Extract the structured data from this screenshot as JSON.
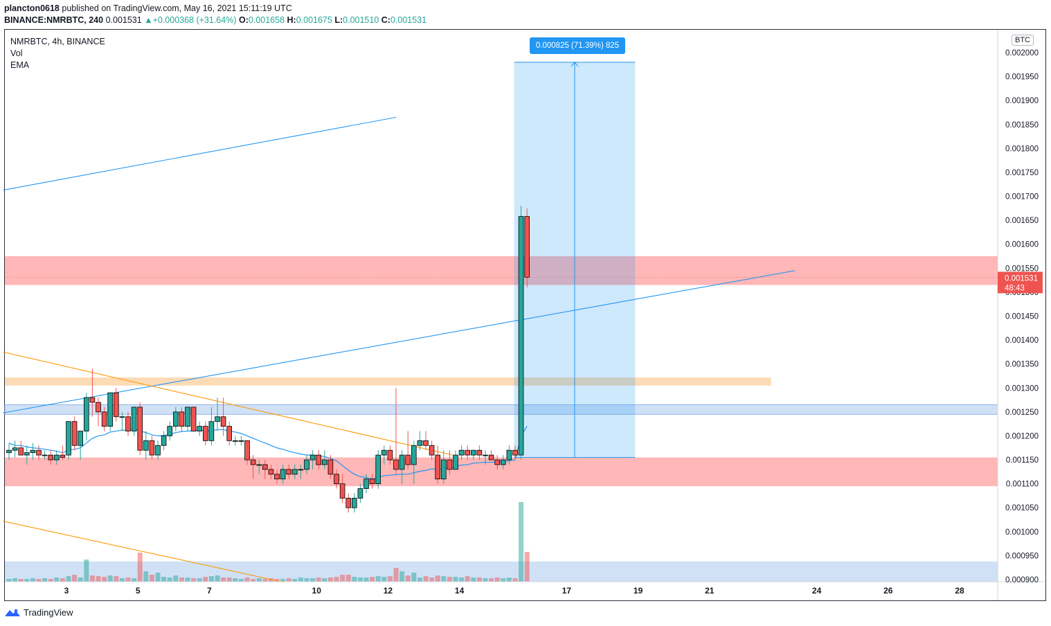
{
  "header": {
    "publisher": "plancton0618",
    "published_text": " published on TradingView.com, May 16, 2021 15:11:19 UTC",
    "symbol": "BINANCE:NMRBTC, 240",
    "last_price": "0.001531",
    "change": "+0.000368 (+31.64%)",
    "o_label": "O:",
    "o_value": "0.001658",
    "h_label": "H:",
    "h_value": "0.001675",
    "l_label": "L:",
    "l_value": "0.001510",
    "c_label": "C:",
    "c_value": "0.001531"
  },
  "legend": {
    "title": "NMRBTC, 4h, BINANCE",
    "vol": "Vol",
    "ema": "EMA"
  },
  "price_scale": {
    "currency": "BTC",
    "current_price": "0.001531",
    "countdown": "48:43"
  },
  "measure_label": "0.000825 (71.39%) 825",
  "footer": {
    "brand": "TradingView"
  },
  "colors": {
    "up": "#26a69a",
    "down": "#ef5350",
    "ema": "#2196f3",
    "trend_blue": "#2196f3",
    "trend_orange": "#ff9800",
    "zone_red": "#ffb3b3",
    "zone_blue": "#c8dcf5",
    "zone_orange": "#fcd9b3",
    "measure": "#2196f3"
  },
  "chart_data": {
    "type": "candlestick",
    "symbol": "NMRBTC",
    "interval": "4h",
    "exchange": "BINANCE",
    "ylim": [
      0.000895,
      0.002015
    ],
    "y_ticks": [
      "0.002000",
      "0.001950",
      "0.001900",
      "0.001850",
      "0.001800",
      "0.001750",
      "0.001700",
      "0.001650",
      "0.001600",
      "0.001550",
      "0.001500",
      "0.001450",
      "0.001400",
      "0.001350",
      "0.001300",
      "0.001250",
      "0.001200",
      "0.001150",
      "0.001100",
      "0.001050",
      "0.001000",
      "0.000950",
      "0.000900"
    ],
    "x_ticks": [
      {
        "label": "3",
        "bar": 10
      },
      {
        "label": "5",
        "bar": 22
      },
      {
        "label": "7",
        "bar": 34
      },
      {
        "label": "10",
        "bar": 52
      },
      {
        "label": "12",
        "bar": 64
      },
      {
        "label": "14",
        "bar": 76
      },
      {
        "label": "17",
        "bar": 94
      },
      {
        "label": "19",
        "bar": 106
      },
      {
        "label": "21",
        "bar": 118
      },
      {
        "label": "24",
        "bar": 136
      },
      {
        "label": "26",
        "bar": 148
      },
      {
        "label": "28",
        "bar": 160
      }
    ],
    "total_bars": 168,
    "ohlc": [
      [
        0.001165,
        0.001185,
        0.00115,
        0.00117
      ],
      [
        0.00117,
        0.00119,
        0.001155,
        0.001175
      ],
      [
        0.001175,
        0.00119,
        0.00116,
        0.00116
      ],
      [
        0.00116,
        0.00118,
        0.00114,
        0.001165
      ],
      [
        0.001165,
        0.001185,
        0.00115,
        0.00117
      ],
      [
        0.00117,
        0.00118,
        0.00115,
        0.00116
      ],
      [
        0.00116,
        0.00117,
        0.00115,
        0.00116
      ],
      [
        0.00116,
        0.00117,
        0.00114,
        0.00115
      ],
      [
        0.00115,
        0.00117,
        0.00114,
        0.00116
      ],
      [
        0.00116,
        0.00118,
        0.00115,
        0.001155
      ],
      [
        0.00116,
        0.00123,
        0.00115,
        0.00123
      ],
      [
        0.00123,
        0.00124,
        0.00117,
        0.00118
      ],
      [
        0.00118,
        0.00121,
        0.00115,
        0.00121
      ],
      [
        0.00121,
        0.00129,
        0.00119,
        0.00128
      ],
      [
        0.00128,
        0.00134,
        0.00124,
        0.00127
      ],
      [
        0.00127,
        0.00128,
        0.00122,
        0.00125
      ],
      [
        0.00125,
        0.00126,
        0.00121,
        0.00122
      ],
      [
        0.00122,
        0.00129,
        0.00121,
        0.00129
      ],
      [
        0.00129,
        0.0013,
        0.00123,
        0.00124
      ],
      [
        0.00124,
        0.00125,
        0.00121,
        0.00124
      ],
      [
        0.00124,
        0.00125,
        0.0012,
        0.00121
      ],
      [
        0.00121,
        0.00126,
        0.0012,
        0.00126
      ],
      [
        0.00126,
        0.00127,
        0.00116,
        0.00117
      ],
      [
        0.00117,
        0.00121,
        0.00115,
        0.00119
      ],
      [
        0.00119,
        0.0012,
        0.00115,
        0.00116
      ],
      [
        0.00116,
        0.00119,
        0.00115,
        0.00118
      ],
      [
        0.00118,
        0.00121,
        0.00117,
        0.0012
      ],
      [
        0.0012,
        0.00123,
        0.00119,
        0.00122
      ],
      [
        0.00122,
        0.00126,
        0.00121,
        0.00125
      ],
      [
        0.00125,
        0.00126,
        0.00121,
        0.00122
      ],
      [
        0.00122,
        0.00125,
        0.00121,
        0.00126
      ],
      [
        0.00126,
        0.00126,
        0.00121,
        0.00121
      ],
      [
        0.00121,
        0.00123,
        0.0012,
        0.00122
      ],
      [
        0.00122,
        0.00123,
        0.00118,
        0.00119
      ],
      [
        0.00119,
        0.00126,
        0.00118,
        0.00123
      ],
      [
        0.00123,
        0.00128,
        0.00121,
        0.00124
      ],
      [
        0.00124,
        0.00128,
        0.0012,
        0.00122
      ],
      [
        0.00122,
        0.00123,
        0.00118,
        0.00119
      ],
      [
        0.00119,
        0.0012,
        0.00118,
        0.00119
      ],
      [
        0.00119,
        0.0012,
        0.00118,
        0.00119
      ],
      [
        0.00119,
        0.00119,
        0.00114,
        0.00115
      ],
      [
        0.00115,
        0.00116,
        0.00111,
        0.00114
      ],
      [
        0.00114,
        0.00115,
        0.00112,
        0.00114
      ],
      [
        0.00114,
        0.00115,
        0.00111,
        0.00113
      ],
      [
        0.00113,
        0.00114,
        0.00111,
        0.00112
      ],
      [
        0.00112,
        0.00113,
        0.0011,
        0.00111
      ],
      [
        0.00111,
        0.00114,
        0.0011,
        0.00113
      ],
      [
        0.00113,
        0.00114,
        0.00111,
        0.00112
      ],
      [
        0.00112,
        0.00114,
        0.00111,
        0.00113
      ],
      [
        0.00113,
        0.00114,
        0.00111,
        0.00113
      ],
      [
        0.00113,
        0.00116,
        0.00112,
        0.00115
      ],
      [
        0.00115,
        0.00117,
        0.00113,
        0.00116
      ],
      [
        0.00116,
        0.00117,
        0.00113,
        0.00114
      ],
      [
        0.00114,
        0.00117,
        0.00113,
        0.00115
      ],
      [
        0.00115,
        0.00116,
        0.00111,
        0.00112
      ],
      [
        0.00112,
        0.00113,
        0.00109,
        0.0011
      ],
      [
        0.0011,
        0.00112,
        0.00106,
        0.00107
      ],
      [
        0.00107,
        0.00108,
        0.00104,
        0.00105
      ],
      [
        0.00105,
        0.00108,
        0.00104,
        0.00107
      ],
      [
        0.00107,
        0.0011,
        0.00106,
        0.00109
      ],
      [
        0.00109,
        0.00112,
        0.00108,
        0.00111
      ],
      [
        0.00111,
        0.00112,
        0.00109,
        0.0011
      ],
      [
        0.0011,
        0.00117,
        0.00109,
        0.00116
      ],
      [
        0.00116,
        0.00118,
        0.00114,
        0.00117
      ],
      [
        0.00117,
        0.00118,
        0.00114,
        0.00115
      ],
      [
        0.00115,
        0.0013,
        0.00112,
        0.00113
      ],
      [
        0.00113,
        0.00117,
        0.0011,
        0.00116
      ],
      [
        0.00116,
        0.00121,
        0.00113,
        0.00114
      ],
      [
        0.00114,
        0.00119,
        0.0011,
        0.00118
      ],
      [
        0.00118,
        0.00121,
        0.00117,
        0.00119
      ],
      [
        0.00119,
        0.00121,
        0.00117,
        0.00118
      ],
      [
        0.00118,
        0.00119,
        0.00115,
        0.00116
      ],
      [
        0.00116,
        0.00118,
        0.0011,
        0.00111
      ],
      [
        0.00111,
        0.00117,
        0.0011,
        0.00115
      ],
      [
        0.00115,
        0.00117,
        0.00112,
        0.00113
      ],
      [
        0.00113,
        0.00117,
        0.00113,
        0.00116
      ],
      [
        0.00116,
        0.00118,
        0.00115,
        0.00117
      ],
      [
        0.00117,
        0.00118,
        0.00115,
        0.00116
      ],
      [
        0.00116,
        0.00117,
        0.00115,
        0.00117
      ],
      [
        0.00117,
        0.00118,
        0.00115,
        0.00116
      ],
      [
        0.00116,
        0.00117,
        0.00114,
        0.00116
      ],
      [
        0.00116,
        0.00117,
        0.00115,
        0.00115
      ],
      [
        0.00115,
        0.00116,
        0.00113,
        0.00114
      ],
      [
        0.00114,
        0.00116,
        0.00113,
        0.00115
      ],
      [
        0.00115,
        0.00118,
        0.00114,
        0.00117
      ],
      [
        0.00117,
        0.00118,
        0.00115,
        0.00116
      ],
      [
        0.00116,
        0.00168,
        0.00115,
        0.001658
      ],
      [
        0.001658,
        0.001675,
        0.00151,
        0.001531
      ]
    ],
    "volume_ylim": [
      0,
      12
    ],
    "volume": [
      0.4,
      0.5,
      0.4,
      0.4,
      0.5,
      0.4,
      0.5,
      0.4,
      0.6,
      0.5,
      0.8,
      1.0,
      0.6,
      3.2,
      0.9,
      0.8,
      0.7,
      0.9,
      0.8,
      0.5,
      0.6,
      0.5,
      4.2,
      1.5,
      1.0,
      1.3,
      0.7,
      0.6,
      0.9,
      0.6,
      0.6,
      0.5,
      0.5,
      0.7,
      0.8,
      0.9,
      0.6,
      0.6,
      0.5,
      0.4,
      0.6,
      0.4,
      0.5,
      0.4,
      0.5,
      0.4,
      0.4,
      0.5,
      0.4,
      0.6,
      0.5,
      0.5,
      0.6,
      0.5,
      0.6,
      0.7,
      1.0,
      1.0,
      0.7,
      0.6,
      0.6,
      0.7,
      0.8,
      0.7,
      0.8,
      2.0,
      1.5,
      0.9,
      1.3,
      0.6,
      0.8,
      0.6,
      0.9,
      0.8,
      0.7,
      0.7,
      0.6,
      0.8,
      0.6,
      0.6,
      0.5,
      0.5,
      0.6,
      0.5,
      0.6,
      0.5,
      11.5,
      4.3
    ],
    "ema": [
      0.001185,
      0.00118,
      0.00118,
      0.001177,
      0.001175,
      0.001174,
      0.001172,
      0.00117,
      0.001168,
      0.001165,
      0.00117,
      0.001172,
      0.001175,
      0.001185,
      0.001195,
      0.0012,
      0.001202,
      0.001208,
      0.00121,
      0.001212,
      0.001212,
      0.001215,
      0.00121,
      0.001207,
      0.001202,
      0.0012,
      0.001201,
      0.001203,
      0.001207,
      0.001209,
      0.00121,
      0.00121,
      0.001212,
      0.00121,
      0.001211,
      0.001213,
      0.001213,
      0.00121,
      0.001208,
      0.001205,
      0.0012,
      0.001195,
      0.00119,
      0.001185,
      0.00118,
      0.001175,
      0.001172,
      0.001168,
      0.001165,
      0.001162,
      0.00116,
      0.00116,
      0.001158,
      0.001157,
      0.001153,
      0.001148,
      0.001138,
      0.001128,
      0.00112,
      0.001115,
      0.001113,
      0.00111,
      0.001113,
      0.001117,
      0.001118,
      0.001119,
      0.00112,
      0.00112,
      0.001123,
      0.001126,
      0.001128,
      0.001131,
      0.00113,
      0.001132,
      0.001133,
      0.001136,
      0.001139,
      0.00114,
      0.001143,
      0.001144,
      0.001145,
      0.001145,
      0.001146,
      0.001147,
      0.001148,
      0.00115,
      0.0012,
      0.00122
    ],
    "zones": [
      {
        "from": 0.001515,
        "to": 0.001575,
        "color": "red"
      },
      {
        "from": 0.001095,
        "to": 0.001155,
        "color": "red"
      },
      {
        "from": 0.001245,
        "to": 0.001265,
        "color": "blue"
      },
      {
        "from": 0.001305,
        "to": 0.001322,
        "color": "orange",
        "end_bar": 128
      },
      {
        "from": 0.000895,
        "to": 0.000938,
        "color": "blue"
      }
    ],
    "trendlines": [
      {
        "color": "blue",
        "from": {
          "bar": -1,
          "price": 0.001713
        },
        "to": {
          "bar": 65,
          "price": 0.001865
        }
      },
      {
        "color": "blue",
        "from": {
          "bar": -1,
          "price": 0.001248
        },
        "to": {
          "bar": 132,
          "price": 0.001545
        }
      },
      {
        "color": "orange",
        "from": {
          "bar": -1,
          "price": 0.001375
        },
        "to": {
          "bar": 74.5,
          "price": 0.00116
        }
      },
      {
        "color": "orange",
        "from": {
          "bar": -1,
          "price": 0.001022
        },
        "to": {
          "bar": 46,
          "price": 0.000895
        }
      }
    ],
    "measure": {
      "from_bar": 86,
      "to_bar": 104,
      "price_low": 0.001155,
      "price_high": 0.00198,
      "arrow_bar": 95
    },
    "current_price": 0.001531
  }
}
